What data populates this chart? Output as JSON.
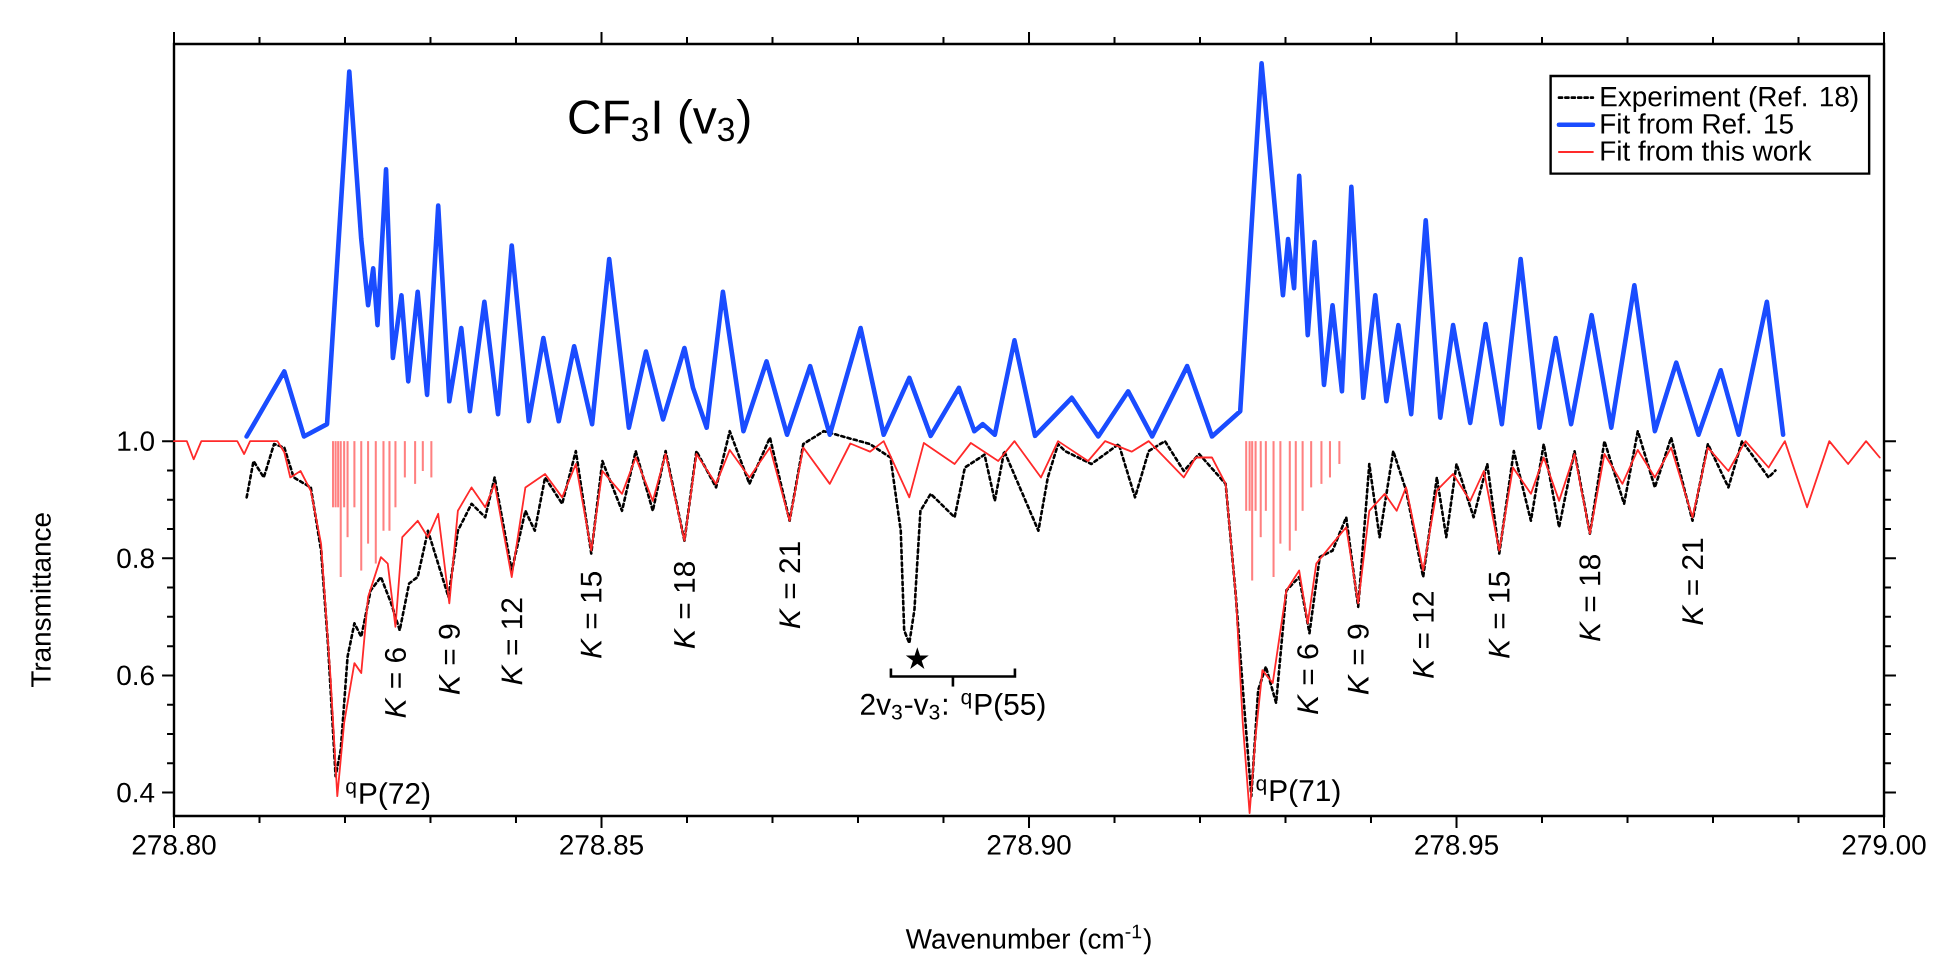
{
  "chart_data": {
    "type": "line",
    "title": "CF$_{3}$I (v$_{3}$)",
    "xlabel": "Wavenumber (cm$^{-1}$)",
    "ylabel": "Transmittance",
    "xlim": [
      278.8,
      279.0
    ],
    "ylim": [
      0.36,
      1.678
    ],
    "xticks": [
      {
        "value": 278.8,
        "label": "278.80"
      },
      {
        "value": 278.85,
        "label": "278.85"
      },
      {
        "value": 278.9,
        "label": "278.90"
      },
      {
        "value": 278.95,
        "label": "278.95"
      },
      {
        "value": 279.0,
        "label": "279.00"
      }
    ],
    "yticks": [
      0.4,
      0.6,
      0.8,
      {
        "value": 1.0,
        "label": "1.0"
      }
    ],
    "legend": "top right",
    "series": [
      {
        "name": "Experiment (Ref. 18)",
        "color": "#000000",
        "line_style": "dotted",
        "x": [
          278.8085,
          278.8093,
          278.8105,
          278.8117,
          278.8129,
          278.814,
          278.816,
          278.8172,
          278.818,
          278.8189,
          278.8195,
          278.8203,
          278.8211,
          278.8219,
          278.823,
          278.8242,
          278.8254,
          278.8264,
          278.8275,
          278.8285,
          278.8297,
          278.8321,
          278.8332,
          278.8348,
          278.8364,
          278.8375,
          278.8395,
          278.8411,
          278.8422,
          278.8434,
          278.8454,
          278.847,
          278.8488,
          278.8501,
          278.8524,
          278.854,
          278.856,
          278.8575,
          278.8597,
          278.8611,
          278.8634,
          278.865,
          278.8673,
          278.8697,
          278.872,
          278.8736,
          278.876,
          278.8814,
          278.8838,
          278.885,
          278.8854,
          278.886,
          278.8866,
          278.8873,
          278.8885,
          278.8913,
          278.8925,
          278.8948,
          278.896,
          278.8971,
          278.9011,
          278.9022,
          278.9034,
          278.9042,
          278.9073,
          278.9105,
          278.9124,
          278.914,
          278.9159,
          278.9181,
          278.9199,
          278.923,
          278.9242,
          278.9252,
          278.926,
          278.9268,
          278.9277,
          278.9289,
          278.9301,
          278.9316,
          278.9328,
          278.934,
          278.9355,
          278.9371,
          278.9385,
          278.9398,
          278.941,
          278.9426,
          278.9441,
          278.9461,
          278.9477,
          278.9488,
          278.95,
          278.952,
          278.9536,
          278.955,
          278.9567,
          278.9587,
          278.9602,
          278.962,
          278.9638,
          278.9656,
          278.9673,
          278.9696,
          278.9712,
          278.9732,
          278.9751,
          278.9776,
          278.9794,
          278.9818,
          278.9834,
          278.9865,
          278.9873
        ],
        "values": [
          0.904,
          0.966,
          0.938,
          0.995,
          0.989,
          0.938,
          0.921,
          0.813,
          0.655,
          0.428,
          0.473,
          0.632,
          0.689,
          0.666,
          0.745,
          0.768,
          0.723,
          0.677,
          0.757,
          0.768,
          0.847,
          0.734,
          0.847,
          0.893,
          0.87,
          0.938,
          0.779,
          0.881,
          0.847,
          0.938,
          0.893,
          0.983,
          0.808,
          0.966,
          0.881,
          0.983,
          0.881,
          0.983,
          0.83,
          0.983,
          0.921,
          1.017,
          0.927,
          1.006,
          0.864,
          0.995,
          1.017,
          0.995,
          0.972,
          0.847,
          0.677,
          0.655,
          0.712,
          0.881,
          0.91,
          0.87,
          0.955,
          0.977,
          0.898,
          0.983,
          0.847,
          0.938,
          0.995,
          0.983,
          0.961,
          0.995,
          0.904,
          0.983,
          1.0,
          0.949,
          0.978,
          0.927,
          0.734,
          0.541,
          0.394,
          0.575,
          0.615,
          0.553,
          0.745,
          0.768,
          0.672,
          0.802,
          0.813,
          0.87,
          0.717,
          0.961,
          0.836,
          0.983,
          0.916,
          0.768,
          0.938,
          0.836,
          0.961,
          0.87,
          0.961,
          0.808,
          0.983,
          0.864,
          0.995,
          0.853,
          0.983,
          0.842,
          1.0,
          0.893,
          1.017,
          0.921,
          1.006,
          0.864,
          0.995,
          0.921,
          1.0,
          0.938,
          0.95
        ]
      },
      {
        "name": "Fit from Ref. 15",
        "color": "#1a4cff",
        "x": [
          278.8085,
          278.8129,
          278.8152,
          278.8179,
          278.8205,
          278.8219,
          278.8227,
          278.8233,
          278.8238,
          278.8248,
          278.8256,
          278.8266,
          278.8274,
          278.8285,
          278.8296,
          278.8309,
          278.8322,
          278.8336,
          278.8346,
          278.8363,
          278.8379,
          278.8395,
          278.8415,
          278.8432,
          278.845,
          278.8468,
          278.8489,
          278.8509,
          278.8532,
          278.8552,
          278.8572,
          278.8597,
          278.8607,
          278.8623,
          278.8642,
          278.8666,
          278.8693,
          278.8717,
          278.8744,
          278.8767,
          278.8803,
          278.883,
          278.886,
          278.8885,
          278.8918,
          278.8936,
          278.8946,
          278.896,
          278.8983,
          278.9007,
          278.905,
          278.9081,
          278.9116,
          278.9144,
          278.9185,
          278.9214,
          278.9247,
          278.9272,
          278.9297,
          278.9303,
          278.931,
          278.9316,
          278.9326,
          278.9334,
          278.9345,
          278.9355,
          278.9366,
          278.9377,
          278.9391,
          278.9405,
          278.9418,
          278.9432,
          278.9447,
          278.9464,
          278.9481,
          278.9496,
          278.9516,
          278.9534,
          278.9553,
          278.9575,
          278.9597,
          278.9616,
          278.9634,
          278.9658,
          278.9681,
          278.9708,
          278.9732,
          278.9757,
          278.9783,
          278.9809,
          278.983,
          278.9863,
          278.9882
        ],
        "values": [
          1.008,
          1.119,
          1.008,
          1.029,
          1.631,
          1.345,
          1.232,
          1.295,
          1.198,
          1.464,
          1.142,
          1.249,
          1.102,
          1.255,
          1.079,
          1.402,
          1.068,
          1.193,
          1.051,
          1.238,
          1.046,
          1.334,
          1.034,
          1.176,
          1.034,
          1.162,
          1.029,
          1.311,
          1.023,
          1.153,
          1.037,
          1.159,
          1.091,
          1.023,
          1.255,
          1.017,
          1.136,
          1.011,
          1.128,
          1.011,
          1.193,
          1.011,
          1.108,
          1.009,
          1.091,
          1.017,
          1.029,
          1.011,
          1.172,
          1.009,
          1.074,
          1.008,
          1.085,
          1.008,
          1.128,
          1.008,
          1.051,
          1.645,
          1.249,
          1.345,
          1.261,
          1.453,
          1.181,
          1.34,
          1.096,
          1.232,
          1.085,
          1.434,
          1.074,
          1.249,
          1.068,
          1.198,
          1.046,
          1.377,
          1.04,
          1.198,
          1.031,
          1.2,
          1.029,
          1.311,
          1.023,
          1.176,
          1.029,
          1.215,
          1.023,
          1.266,
          1.017,
          1.134,
          1.011,
          1.121,
          1.011,
          1.238,
          1.011
        ]
      },
      {
        "name": "Fit from this work",
        "color": "#ff2a2a",
        "x": [
          278.8,
          278.8015,
          278.8023,
          278.8032,
          278.8074,
          278.8082,
          278.8089,
          278.8121,
          278.8129,
          278.8136,
          278.8148,
          278.816,
          278.8172,
          278.8183,
          278.8191,
          278.8199,
          278.8211,
          278.8219,
          278.8227,
          278.8242,
          278.825,
          278.8259,
          278.8267,
          278.8285,
          278.8297,
          278.8309,
          278.8322,
          278.8332,
          278.8348,
          278.8364,
          278.8375,
          278.8395,
          278.8411,
          278.8434,
          278.8454,
          278.847,
          278.8488,
          278.8501,
          278.8524,
          278.854,
          278.856,
          278.8575,
          278.8597,
          278.8611,
          278.8634,
          278.865,
          278.8673,
          278.8697,
          278.872,
          278.8736,
          278.8767,
          278.8791,
          278.8814,
          278.883,
          278.886,
          278.8877,
          278.8913,
          278.8932,
          278.8964,
          278.8983,
          278.9014,
          278.9034,
          278.9069,
          278.9089,
          278.912,
          278.914,
          278.9181,
          278.9195,
          278.9214,
          278.923,
          278.9242,
          278.925,
          278.9258,
          278.9265,
          278.9273,
          278.9285,
          278.9301,
          278.9316,
          278.9326,
          278.9336,
          278.9355,
          278.9371,
          278.9385,
          278.9398,
          278.9416,
          278.943,
          278.9441,
          278.9461,
          278.9477,
          278.9496,
          278.9516,
          278.9532,
          278.955,
          278.9566,
          278.9587,
          278.9602,
          278.962,
          278.9638,
          278.9656,
          278.9673,
          278.9694,
          278.9712,
          278.9732,
          278.9751,
          278.9776,
          278.9794,
          278.9818,
          278.9838,
          278.9865,
          278.9884,
          278.991,
          278.9936,
          278.9958,
          278.9979,
          278.9995
        ],
        "values": [
          1.0,
          1.0,
          0.969,
          1.0,
          1.0,
          0.978,
          1.0,
          1.0,
          0.981,
          0.938,
          0.949,
          0.915,
          0.825,
          0.598,
          0.394,
          0.519,
          0.621,
          0.604,
          0.734,
          0.802,
          0.791,
          0.683,
          0.836,
          0.864,
          0.836,
          0.876,
          0.723,
          0.881,
          0.921,
          0.887,
          0.927,
          0.768,
          0.921,
          0.944,
          0.904,
          0.961,
          0.813,
          0.949,
          0.91,
          0.972,
          0.898,
          0.978,
          0.83,
          0.978,
          0.927,
          0.985,
          0.938,
          0.989,
          0.864,
          0.989,
          0.927,
          0.996,
          0.982,
          1.0,
          0.904,
          0.997,
          0.961,
          0.997,
          0.966,
          1.0,
          0.938,
          1.0,
          0.966,
          1.0,
          0.982,
          1.0,
          0.938,
          0.972,
          0.972,
          0.927,
          0.734,
          0.519,
          0.365,
          0.496,
          0.609,
          0.587,
          0.745,
          0.779,
          0.689,
          0.791,
          0.825,
          0.853,
          0.723,
          0.881,
          0.91,
          0.881,
          0.921,
          0.779,
          0.916,
          0.944,
          0.898,
          0.949,
          0.813,
          0.955,
          0.91,
          0.972,
          0.898,
          0.978,
          0.842,
          0.978,
          0.927,
          0.985,
          0.938,
          0.989,
          0.87,
          0.989,
          0.949,
          1.0,
          0.955,
          1.0,
          0.887,
          1.0,
          0.961,
          1.0,
          0.972
        ]
      },
      {
        "type": "bar",
        "color": "#ff8080",
        "x": [
          278.8186,
          278.8189,
          278.8192,
          278.8195,
          278.8199,
          278.8203,
          278.8211,
          278.8219,
          278.8227,
          278.8236,
          278.8245,
          278.8252,
          278.8259,
          278.827,
          278.8282,
          278.8291,
          278.8301,
          278.9254,
          278.9258,
          278.9261,
          278.9265,
          278.9271,
          278.9277,
          278.9286,
          278.9294,
          278.9305,
          278.9312,
          278.932,
          278.933,
          278.9342,
          278.9352,
          278.9363
        ],
        "base": [
          1.0,
          1.0,
          1.0,
          1.0,
          1.0,
          1.0,
          1.0,
          1.0,
          1.0,
          1.0,
          1.0,
          1.0,
          1.0,
          1.0,
          1.0,
          1.0,
          1.0,
          1.0,
          1.0,
          1.0,
          1.0,
          1.0,
          1.0,
          1.0,
          1.0,
          1.0,
          1.0,
          1.0,
          1.0,
          1.0,
          1.0,
          1.0
        ],
        "values": [
          -0.113,
          -0.113,
          -0.113,
          -0.232,
          -0.113,
          -0.164,
          -0.113,
          -0.221,
          -0.175,
          -0.209,
          -0.153,
          -0.153,
          -0.113,
          -0.062,
          -0.073,
          -0.051,
          -0.062,
          -0.119,
          -0.119,
          -0.238,
          -0.119,
          -0.164,
          -0.119,
          -0.232,
          -0.175,
          -0.187,
          -0.153,
          -0.119,
          -0.079,
          -0.073,
          -0.062,
          -0.039
        ]
      }
    ],
    "annotations": [
      {
        "text": "*K* = 6",
        "x": 278.8259,
        "y": 0.683
      },
      {
        "text": "*K* = 9",
        "x": 278.8322,
        "y": 0.723
      },
      {
        "text": "*K* = 12",
        "x": 278.8395,
        "y": 0.768
      },
      {
        "text": "*K* = 15",
        "x": 278.8488,
        "y": 0.813
      },
      {
        "text": "*K* = 18",
        "x": 278.8597,
        "y": 0.83
      },
      {
        "text": "*K* = 21",
        "x": 278.872,
        "y": 0.864
      },
      {
        "text": "*K* = 6",
        "x": 278.9326,
        "y": 0.689
      },
      {
        "text": "*K* = 9",
        "x": 278.9385,
        "y": 0.723
      },
      {
        "text": "*K* = 12",
        "x": 278.9461,
        "y": 0.779
      },
      {
        "text": "*K* = 15",
        "x": 278.955,
        "y": 0.813
      },
      {
        "text": "*K* = 18",
        "x": 278.9656,
        "y": 0.842
      },
      {
        "text": "*K* = 21",
        "x": 278.9776,
        "y": 0.87
      },
      {
        "text": "$^{q}$P(72)",
        "x": 278.8191,
        "y": 0.394
      },
      {
        "text": "$^{q}$P(71)",
        "x": 278.9258,
        "y": 0.365
      },
      {
        "text": "★",
        "x": 278.886,
        "y": 0.655
      },
      "2v$_{3}$-v$_{3}$: $^{q}$P(55)"
    ]
  }
}
